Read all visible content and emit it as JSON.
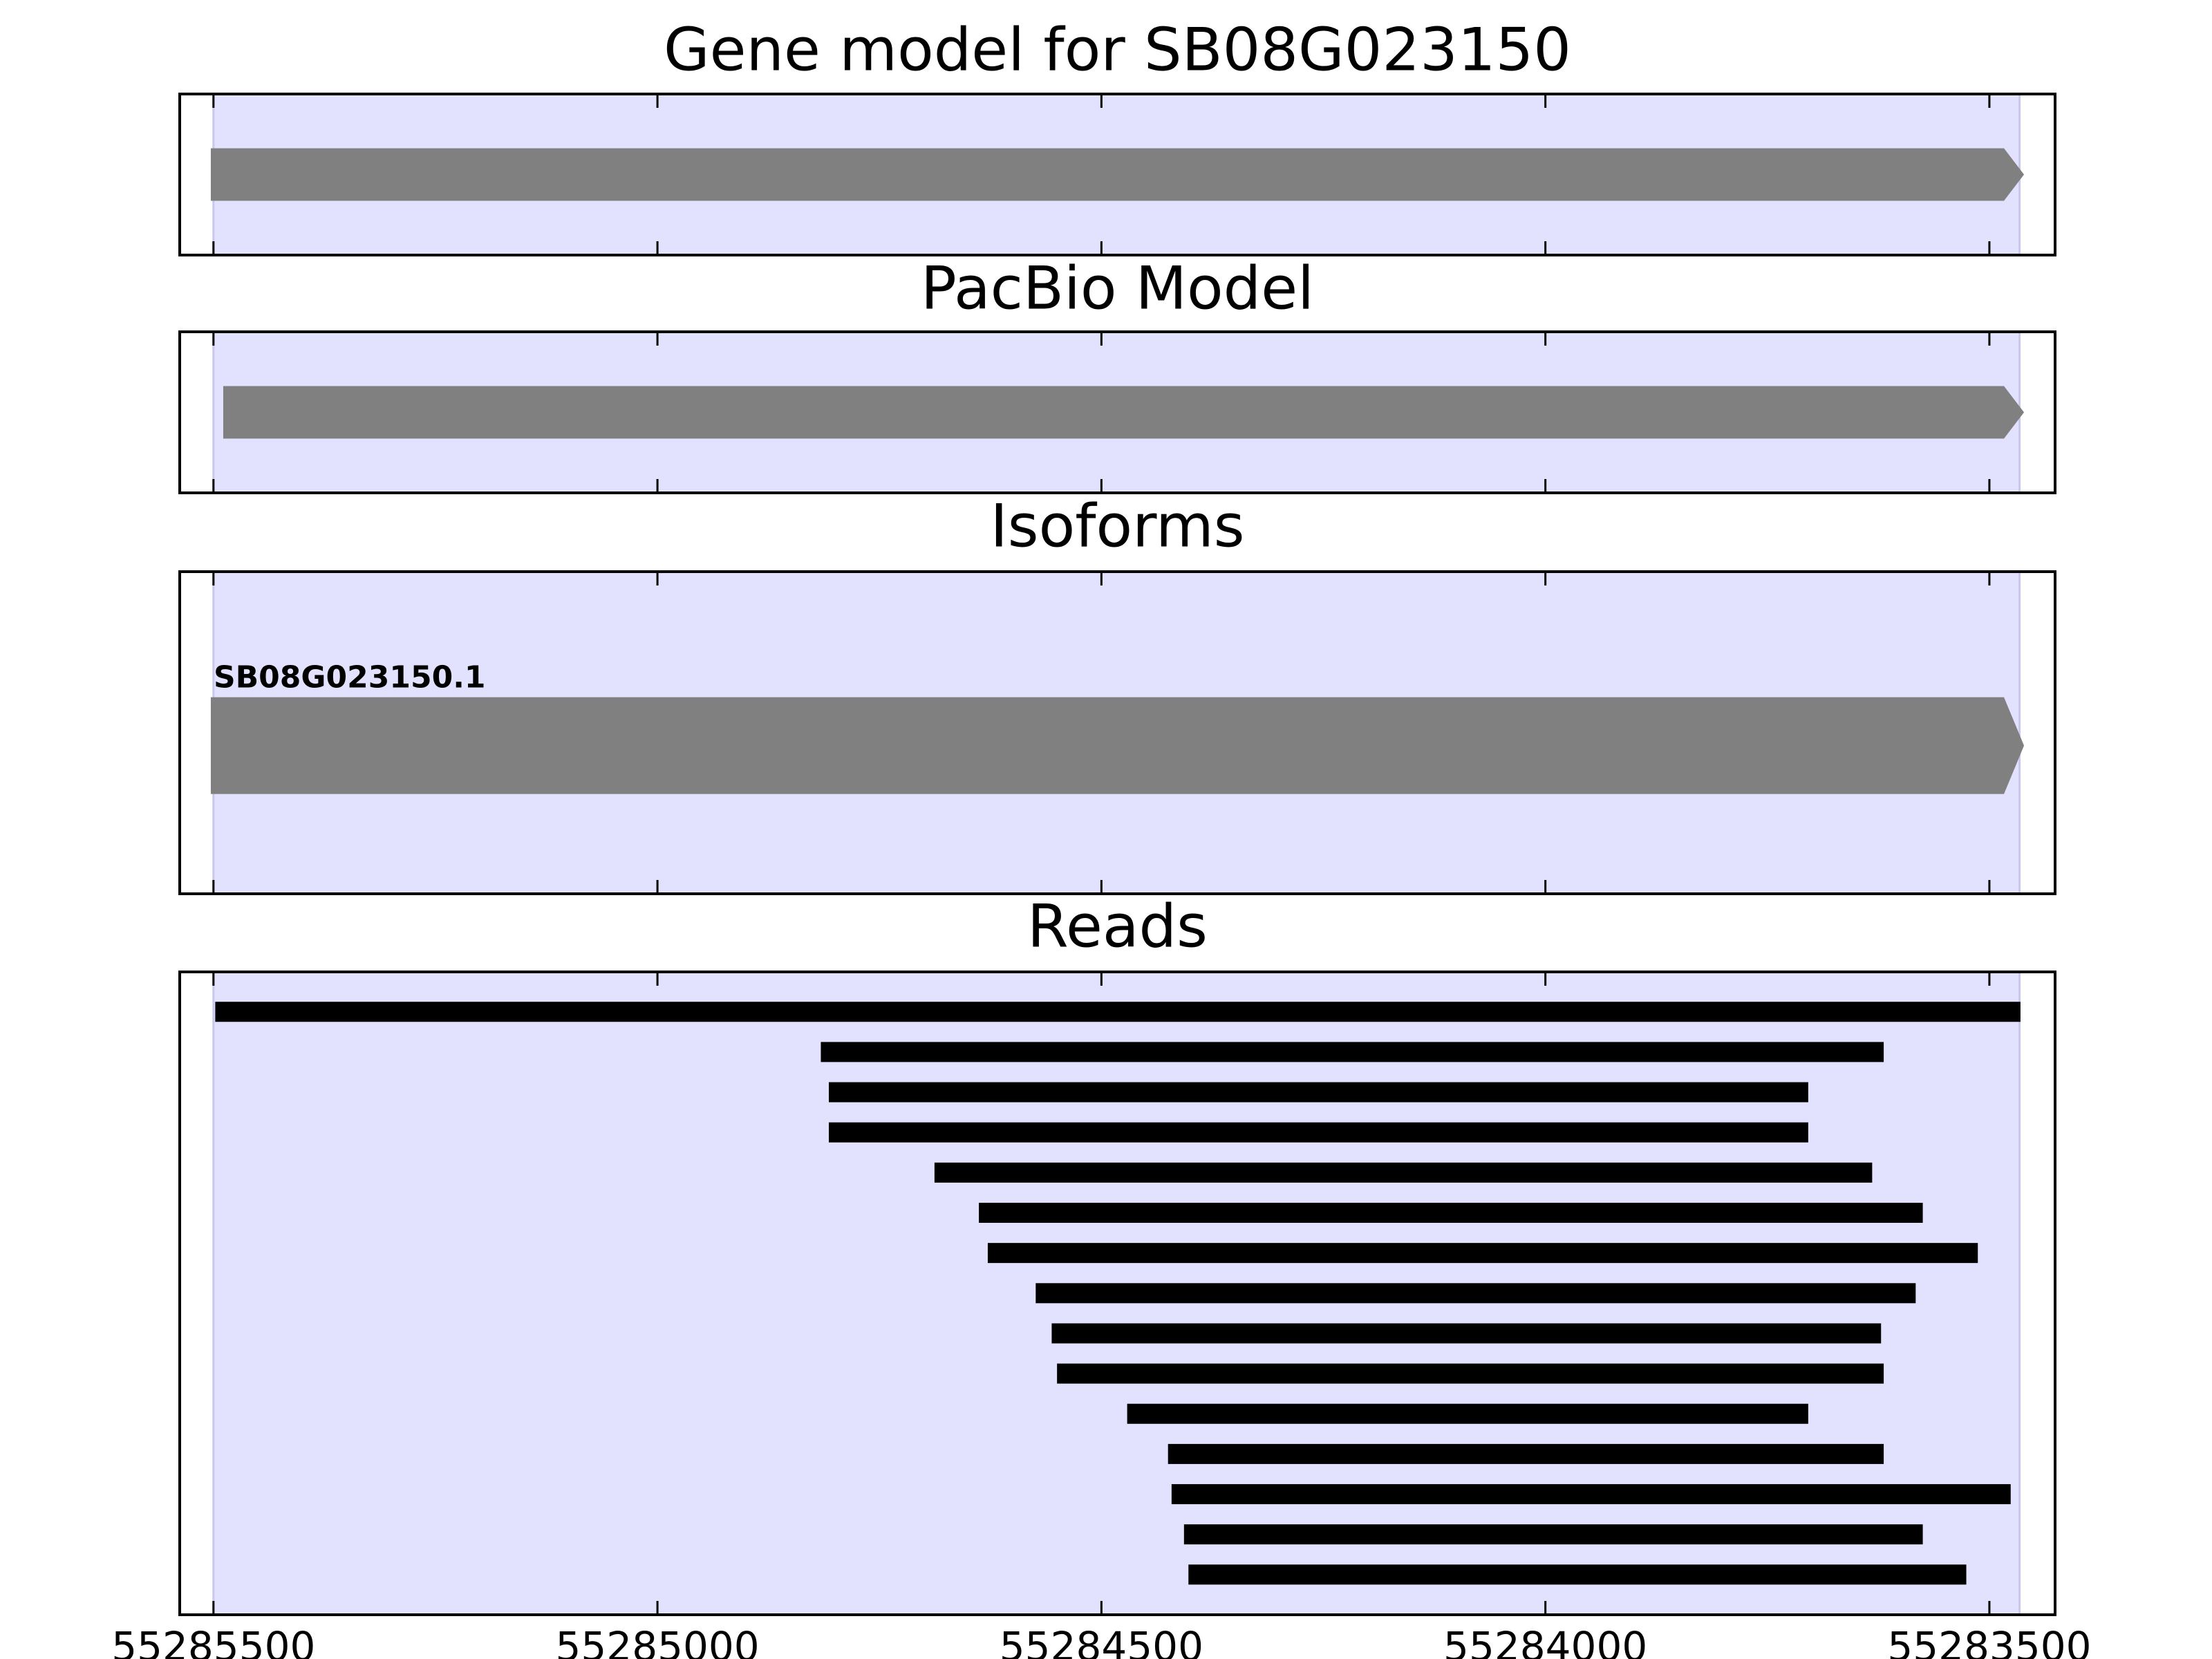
{
  "chart_data": [
    {
      "type": "gene-track",
      "title": "Gene model for SB08G023150",
      "xlim": [
        55285538,
        55283426
      ],
      "xticks": [
        55285500,
        55285000,
        55284500,
        55284000,
        55283500
      ],
      "highlight": [
        55285500,
        55283466
      ],
      "highlight_color": "#e2e2fe",
      "features": [
        {
          "start": 55285503,
          "end": 55283461,
          "color": "#808080"
        }
      ]
    },
    {
      "type": "gene-track",
      "title": "PacBio Model",
      "xlim": [
        55285538,
        55283426
      ],
      "xticks": [
        55285500,
        55285000,
        55284500,
        55284000,
        55283500
      ],
      "highlight": [
        55285500,
        55283466
      ],
      "highlight_color": "#e2e2fe",
      "features": [
        {
          "start": 55285489,
          "end": 55283461,
          "color": "#808080"
        }
      ]
    },
    {
      "type": "isoforms",
      "title": "Isoforms",
      "xlim": [
        55285538,
        55283426
      ],
      "xticks": [
        55285500,
        55285000,
        55284500,
        55284000,
        55283500
      ],
      "highlight": [
        55285500,
        55283466
      ],
      "highlight_color": "#e2e2fe",
      "features": [
        {
          "name": "SB08G023150.1",
          "start": 55285503,
          "end": 55283461,
          "color": "#808080"
        }
      ]
    },
    {
      "type": "reads",
      "title": "Reads",
      "xlim": [
        55285538,
        55283426
      ],
      "xticks": [
        55285500,
        55285000,
        55284500,
        55284000,
        55283500
      ],
      "highlight": [
        55285500,
        55283466
      ],
      "highlight_color": "#e2e2fe",
      "color": "#000000",
      "values": [
        [
          55285498,
          55283465
        ],
        [
          55284816,
          55283619
        ],
        [
          55284807,
          55283704
        ],
        [
          55284807,
          55283704
        ],
        [
          55284688,
          55283632
        ],
        [
          55284638,
          55283575
        ],
        [
          55284628,
          55283513
        ],
        [
          55284574,
          55283583
        ],
        [
          55284556,
          55283622
        ],
        [
          55284550,
          55283619
        ],
        [
          55284471,
          55283704
        ],
        [
          55284425,
          55283619
        ],
        [
          55284421,
          55283476
        ],
        [
          55284407,
          55283575
        ],
        [
          55284402,
          55283526
        ]
      ]
    }
  ]
}
